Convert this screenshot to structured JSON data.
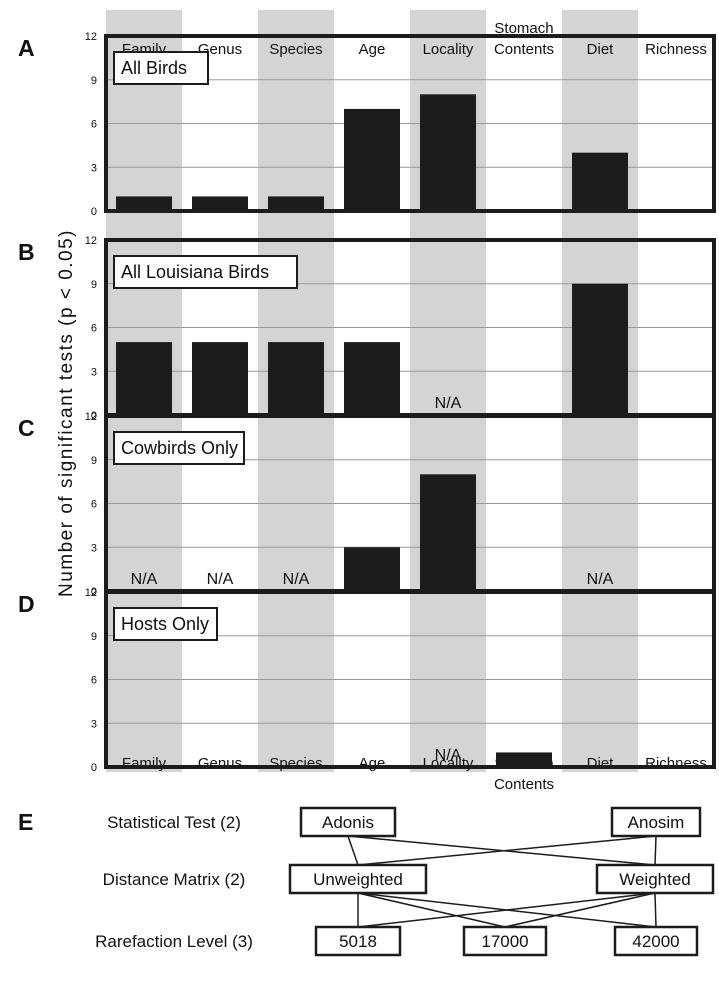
{
  "colors": {
    "shade": "#d4d4d4",
    "bar": "#1c1c1c",
    "frame": "#1c1c1c",
    "grid": "#9a9a9a"
  },
  "y_axis_label": "Number of significant tests (p < 0.05)",
  "na_text": "N/A",
  "top_categories": [
    [
      "Family"
    ],
    [
      "Genus"
    ],
    [
      "Species"
    ],
    [
      "Age"
    ],
    [
      "Locality"
    ],
    [
      "Stomach",
      "Contents"
    ],
    [
      "Diet"
    ],
    [
      "Richness"
    ]
  ],
  "bottom_categories": [
    [
      "Family"
    ],
    [
      "Genus"
    ],
    [
      "Species"
    ],
    [
      "Age"
    ],
    [
      "Locality"
    ],
    [
      "Stomach",
      "Contents"
    ],
    [
      "Diet"
    ],
    [
      "Richness"
    ]
  ],
  "chart_data": [
    {
      "type": "bar",
      "panel_letter": "A",
      "title": "All Birds",
      "categories": [
        "Family",
        "Genus",
        "Species",
        "Age",
        "Locality",
        "Stomach Contents",
        "Diet",
        "Richness"
      ],
      "values": [
        1,
        1,
        1,
        7,
        8,
        0,
        4,
        0
      ],
      "na": [
        false,
        false,
        false,
        false,
        false,
        false,
        false,
        false
      ],
      "ylim": [
        0,
        12
      ],
      "yticks": [
        0,
        3,
        6,
        9,
        12
      ],
      "grid": true
    },
    {
      "type": "bar",
      "panel_letter": "B",
      "title": "All Louisiana Birds",
      "categories": [
        "Family",
        "Genus",
        "Species",
        "Age",
        "Locality",
        "Stomach Contents",
        "Diet",
        "Richness"
      ],
      "values": [
        5,
        5,
        5,
        5,
        null,
        0,
        9,
        0
      ],
      "na": [
        false,
        false,
        false,
        false,
        true,
        false,
        false,
        false
      ],
      "ylim": [
        0,
        12
      ],
      "yticks": [
        0,
        3,
        6,
        9,
        12
      ],
      "grid": true
    },
    {
      "type": "bar",
      "panel_letter": "C",
      "title": "Cowbirds Only",
      "categories": [
        "Family",
        "Genus",
        "Species",
        "Age",
        "Locality",
        "Stomach Contents",
        "Diet",
        "Richness"
      ],
      "values": [
        null,
        null,
        null,
        3,
        8,
        0,
        null,
        0
      ],
      "na": [
        true,
        true,
        true,
        false,
        false,
        false,
        true,
        false
      ],
      "ylim": [
        0,
        12
      ],
      "yticks": [
        0,
        3,
        6,
        9,
        12
      ],
      "grid": true
    },
    {
      "type": "bar",
      "panel_letter": "D",
      "title": "Hosts Only",
      "categories": [
        "Family",
        "Genus",
        "Species",
        "Age",
        "Locality",
        "Stomach Contents",
        "Diet",
        "Richness"
      ],
      "values": [
        0,
        0,
        0,
        0,
        null,
        1,
        0,
        0
      ],
      "na": [
        false,
        false,
        false,
        false,
        true,
        false,
        false,
        false
      ],
      "ylim": [
        0,
        12
      ],
      "yticks": [
        0,
        3,
        6,
        9,
        12
      ],
      "grid": true
    }
  ],
  "diagram": {
    "panel_letter": "E",
    "rows": [
      {
        "label": "Statistical Test (2)",
        "nodes": [
          "Adonis",
          "Anosim"
        ]
      },
      {
        "label": "Distance Matrix (2)",
        "nodes": [
          "Unweighted",
          "Weighted"
        ]
      },
      {
        "label": "Rarefaction Level (3)",
        "nodes": [
          "5018",
          "17000",
          "42000"
        ]
      }
    ],
    "edges": [
      [
        [
          0,
          0
        ],
        [
          1,
          0
        ]
      ],
      [
        [
          0,
          0
        ],
        [
          1,
          1
        ]
      ],
      [
        [
          0,
          1
        ],
        [
          1,
          0
        ]
      ],
      [
        [
          0,
          1
        ],
        [
          1,
          1
        ]
      ],
      [
        [
          1,
          0
        ],
        [
          2,
          0
        ]
      ],
      [
        [
          1,
          0
        ],
        [
          2,
          1
        ]
      ],
      [
        [
          1,
          0
        ],
        [
          2,
          2
        ]
      ],
      [
        [
          1,
          1
        ],
        [
          2,
          0
        ]
      ],
      [
        [
          1,
          1
        ],
        [
          2,
          1
        ]
      ],
      [
        [
          1,
          1
        ],
        [
          2,
          2
        ]
      ]
    ]
  }
}
